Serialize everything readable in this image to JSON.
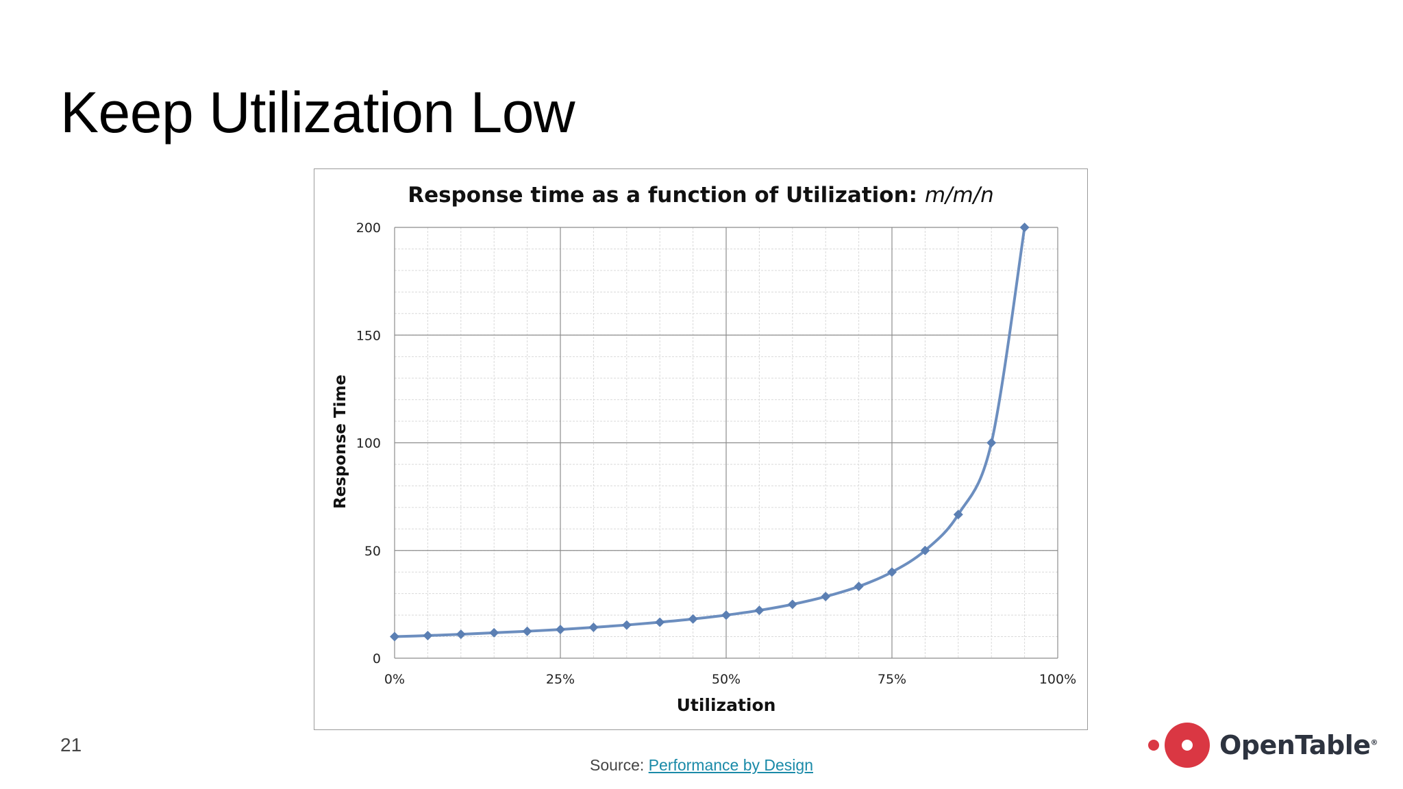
{
  "slide": {
    "title": "Keep Utilization Low",
    "page_number": "21",
    "source_prefix": "Source: ",
    "source_link_text": "Performance by Design"
  },
  "logo": {
    "text": "OpenTable",
    "registered": "®",
    "color": "#da3743"
  },
  "colors": {
    "series": "#6c8ebf",
    "marker": "#5b7fb3",
    "link": "#1a8aa8",
    "brand": "#da3743"
  },
  "chart_data": {
    "type": "line",
    "title": "Response time as a function of Utilization: ",
    "title_italic": "m/m/n",
    "xlabel": "Utilization",
    "ylabel": "Response Time",
    "xlim": [
      0,
      100
    ],
    "ylim": [
      0,
      200
    ],
    "x_ticks": [
      0,
      25,
      50,
      75,
      100
    ],
    "x_tick_labels": [
      "0%",
      "25%",
      "50%",
      "75%",
      "100%"
    ],
    "y_ticks": [
      0,
      50,
      100,
      150,
      200
    ],
    "y_tick_labels": [
      "0",
      "50",
      "100",
      "150",
      "200"
    ],
    "grid": true,
    "minor_grid": true,
    "legend": "none",
    "series": [
      {
        "x": [
          0,
          5,
          10,
          15,
          20,
          25,
          30,
          35,
          40,
          45,
          50,
          55,
          60,
          65,
          70,
          75,
          80,
          85,
          90,
          95
        ],
        "values": [
          10,
          10.5,
          11.1,
          11.8,
          12.5,
          13.3,
          14.3,
          15.4,
          16.7,
          18.2,
          20,
          22.2,
          25,
          28.6,
          33.3,
          40,
          50,
          66.7,
          100,
          200
        ]
      }
    ]
  }
}
